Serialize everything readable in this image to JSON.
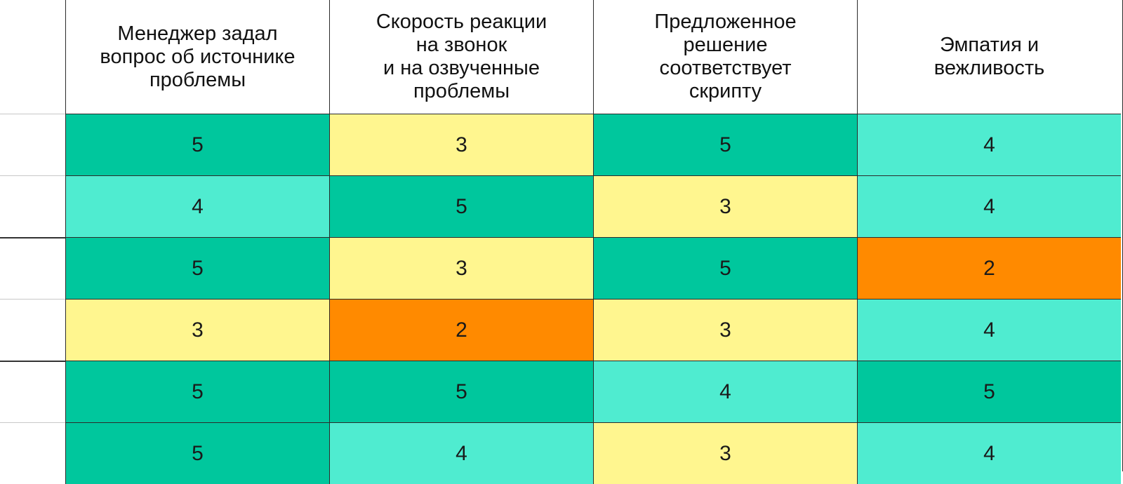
{
  "chart_data": {
    "type": "heatmap",
    "columns": [
      "Менеджер задал\nвопрос об источнике\nпроблемы",
      "Скорость реакции\nна звонок\nи на озвученные\nпроблемы",
      "Предложенное\nрешение\nсоответствует\nскрипту",
      "Эмпатия и\nвежливость"
    ],
    "rows": [
      [
        5,
        3,
        5,
        4
      ],
      [
        4,
        5,
        3,
        4
      ],
      [
        5,
        3,
        5,
        2
      ],
      [
        3,
        2,
        3,
        4
      ],
      [
        5,
        5,
        4,
        5
      ],
      [
        5,
        4,
        3,
        4
      ]
    ],
    "color_scale": {
      "2": "#ff8a00",
      "3": "#fff68f",
      "4": "#4fecd0",
      "5": "#00c79d"
    }
  }
}
